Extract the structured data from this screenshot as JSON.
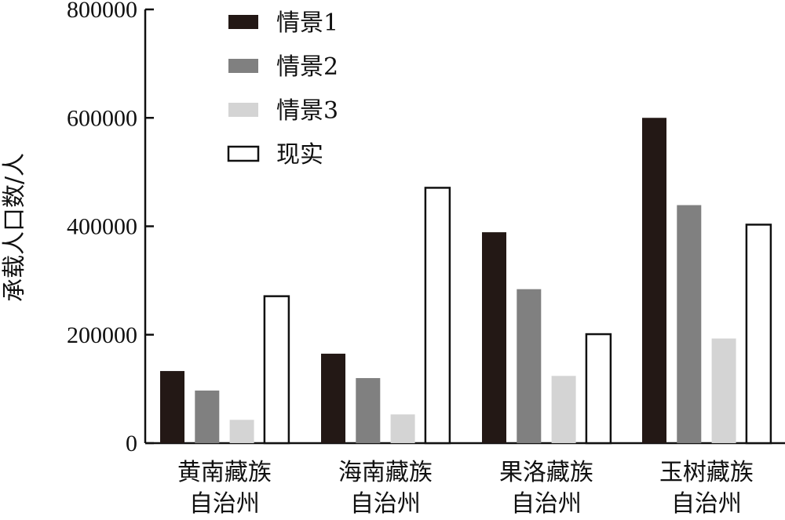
{
  "chart_data": {
    "type": "bar",
    "ylabel": "承载人口数/人",
    "xlabel": "",
    "ylim": [
      0,
      800000
    ],
    "yticks": [
      0,
      200000,
      400000,
      600000,
      800000
    ],
    "categories": [
      [
        "黄南藏族",
        "自治州"
      ],
      [
        "海南藏族",
        "自治州"
      ],
      [
        "果洛藏族",
        "自治州"
      ],
      [
        "玉树藏族",
        "自治州"
      ]
    ],
    "series": [
      {
        "name": "情景1",
        "color": "#231815",
        "values": [
          133000,
          165000,
          389000,
          600000
        ]
      },
      {
        "name": "情景2",
        "color": "#808080",
        "values": [
          97000,
          120000,
          284000,
          439000
        ]
      },
      {
        "name": "情景3",
        "color": "#d4d4d4",
        "values": [
          43000,
          53000,
          124000,
          193000
        ]
      },
      {
        "name": "现实",
        "color": "#ffffff",
        "values": [
          271000,
          471000,
          201000,
          403000
        ]
      }
    ],
    "legend_position": "top-left",
    "grid": false
  }
}
